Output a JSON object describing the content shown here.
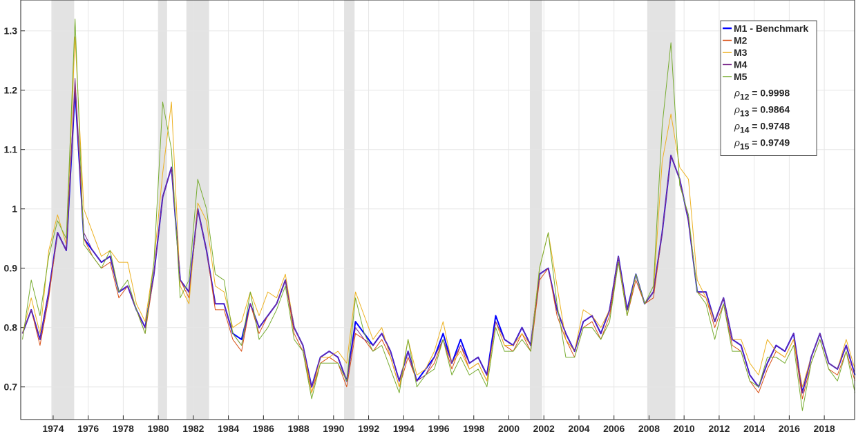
{
  "chart_data": {
    "type": "line",
    "x": [
      1972.25,
      1972.75,
      1973.25,
      1973.75,
      1974.25,
      1974.75,
      1975.25,
      1975.75,
      1976.25,
      1976.75,
      1977.25,
      1977.75,
      1978.25,
      1978.75,
      1979.25,
      1979.75,
      1980.25,
      1980.75,
      1981.25,
      1981.75,
      1982.25,
      1982.75,
      1983.25,
      1983.75,
      1984.25,
      1984.75,
      1985.25,
      1985.75,
      1986.25,
      1986.75,
      1987.25,
      1987.75,
      1988.25,
      1988.75,
      1989.25,
      1989.75,
      1990.25,
      1990.75,
      1991.25,
      1991.75,
      1992.25,
      1992.75,
      1993.25,
      1993.75,
      1994.25,
      1994.75,
      1995.25,
      1995.75,
      1996.25,
      1996.75,
      1997.25,
      1997.75,
      1998.25,
      1998.75,
      1999.25,
      1999.75,
      2000.25,
      2000.75,
      2001.25,
      2001.75,
      2002.25,
      2002.75,
      2003.25,
      2003.75,
      2004.25,
      2004.75,
      2005.25,
      2005.75,
      2006.25,
      2006.75,
      2007.25,
      2007.75,
      2008.25,
      2008.75,
      2009.25,
      2009.75,
      2010.25,
      2010.75,
      2011.25,
      2011.75,
      2012.25,
      2012.75,
      2013.25,
      2013.75,
      2014.25,
      2014.75,
      2015.25,
      2015.75,
      2016.25,
      2016.75,
      2017.25,
      2017.75,
      2018.25,
      2018.75,
      2019.25,
      2019.75
    ],
    "series": [
      {
        "name": "M1 - Benchmark",
        "color": "#0000ff",
        "width": 2,
        "values": [
          0.79,
          0.83,
          0.78,
          0.86,
          0.96,
          0.93,
          1.2,
          0.95,
          0.93,
          0.91,
          0.92,
          0.86,
          0.87,
          0.83,
          0.8,
          0.89,
          1.02,
          1.07,
          0.88,
          0.86,
          1.0,
          0.93,
          0.84,
          0.84,
          0.79,
          0.78,
          0.84,
          0.8,
          0.82,
          0.84,
          0.88,
          0.8,
          0.77,
          0.7,
          0.75,
          0.76,
          0.75,
          0.71,
          0.81,
          0.79,
          0.77,
          0.79,
          0.76,
          0.71,
          0.76,
          0.71,
          0.73,
          0.75,
          0.79,
          0.74,
          0.78,
          0.74,
          0.75,
          0.72,
          0.82,
          0.78,
          0.77,
          0.8,
          0.77,
          0.89,
          0.9,
          0.83,
          0.79,
          0.76,
          0.81,
          0.82,
          0.79,
          0.83,
          0.92,
          0.83,
          0.89,
          0.84,
          0.86,
          0.96,
          1.09,
          1.05,
          0.98,
          0.86,
          0.86,
          0.81,
          0.85,
          0.78,
          0.77,
          0.72,
          0.7,
          0.74,
          0.77,
          0.76,
          0.79,
          0.69,
          0.75,
          0.79,
          0.74,
          0.73,
          0.77,
          0.72
        ]
      },
      {
        "name": "M2",
        "color": "#d95319",
        "width": 1,
        "values": [
          0.79,
          0.83,
          0.77,
          0.85,
          0.96,
          0.93,
          1.21,
          0.95,
          0.92,
          0.9,
          0.91,
          0.85,
          0.87,
          0.83,
          0.79,
          0.89,
          1.02,
          1.07,
          0.88,
          0.85,
          1.0,
          0.93,
          0.83,
          0.83,
          0.78,
          0.76,
          0.84,
          0.79,
          0.82,
          0.84,
          0.88,
          0.79,
          0.76,
          0.69,
          0.74,
          0.75,
          0.74,
          0.7,
          0.79,
          0.78,
          0.76,
          0.78,
          0.75,
          0.7,
          0.75,
          0.71,
          0.72,
          0.74,
          0.78,
          0.73,
          0.77,
          0.73,
          0.74,
          0.71,
          0.81,
          0.77,
          0.76,
          0.79,
          0.76,
          0.88,
          0.9,
          0.82,
          0.78,
          0.75,
          0.8,
          0.81,
          0.78,
          0.82,
          0.91,
          0.82,
          0.88,
          0.84,
          0.85,
          0.96,
          1.09,
          1.05,
          0.98,
          0.86,
          0.85,
          0.8,
          0.84,
          0.77,
          0.76,
          0.71,
          0.69,
          0.73,
          0.76,
          0.75,
          0.78,
          0.68,
          0.74,
          0.78,
          0.73,
          0.72,
          0.76,
          0.71
        ]
      },
      {
        "name": "M3",
        "color": "#edb120",
        "width": 1,
        "values": [
          0.79,
          0.85,
          0.79,
          0.93,
          0.99,
          0.94,
          1.29,
          1.0,
          0.96,
          0.92,
          0.93,
          0.91,
          0.91,
          0.84,
          0.81,
          0.91,
          1.06,
          1.18,
          0.87,
          0.84,
          1.01,
          0.98,
          0.87,
          0.86,
          0.8,
          0.81,
          0.86,
          0.82,
          0.86,
          0.85,
          0.89,
          0.8,
          0.77,
          0.69,
          0.75,
          0.75,
          0.76,
          0.74,
          0.86,
          0.82,
          0.78,
          0.8,
          0.75,
          0.7,
          0.78,
          0.72,
          0.73,
          0.76,
          0.81,
          0.74,
          0.76,
          0.73,
          0.74,
          0.71,
          0.81,
          0.77,
          0.77,
          0.79,
          0.77,
          0.9,
          0.96,
          0.87,
          0.78,
          0.76,
          0.83,
          0.82,
          0.8,
          0.83,
          0.92,
          0.82,
          0.89,
          0.84,
          0.86,
          1.08,
          1.16,
          1.07,
          1.05,
          0.88,
          0.85,
          0.81,
          0.85,
          0.78,
          0.78,
          0.74,
          0.72,
          0.78,
          0.76,
          0.75,
          0.78,
          0.7,
          0.75,
          0.79,
          0.74,
          0.73,
          0.78,
          0.73
        ]
      },
      {
        "name": "M4",
        "color": "#7e2f8e",
        "width": 1,
        "values": [
          0.79,
          0.83,
          0.78,
          0.86,
          0.96,
          0.93,
          1.22,
          0.96,
          0.93,
          0.91,
          0.92,
          0.86,
          0.87,
          0.83,
          0.8,
          0.89,
          1.02,
          1.07,
          0.88,
          0.86,
          1.0,
          0.93,
          0.84,
          0.84,
          0.79,
          0.77,
          0.84,
          0.8,
          0.82,
          0.84,
          0.88,
          0.8,
          0.77,
          0.7,
          0.75,
          0.76,
          0.75,
          0.71,
          0.8,
          0.78,
          0.77,
          0.79,
          0.76,
          0.71,
          0.76,
          0.71,
          0.72,
          0.75,
          0.78,
          0.74,
          0.77,
          0.74,
          0.75,
          0.72,
          0.81,
          0.78,
          0.77,
          0.8,
          0.77,
          0.89,
          0.9,
          0.83,
          0.79,
          0.76,
          0.81,
          0.82,
          0.79,
          0.83,
          0.92,
          0.83,
          0.89,
          0.84,
          0.86,
          0.96,
          1.09,
          1.05,
          0.98,
          0.86,
          0.86,
          0.81,
          0.85,
          0.78,
          0.77,
          0.72,
          0.7,
          0.74,
          0.77,
          0.76,
          0.79,
          0.69,
          0.75,
          0.79,
          0.74,
          0.73,
          0.77,
          0.72
        ]
      },
      {
        "name": "M5",
        "color": "#77ac30",
        "width": 1,
        "values": [
          0.78,
          0.88,
          0.82,
          0.92,
          0.98,
          0.95,
          1.32,
          0.94,
          0.92,
          0.9,
          0.93,
          0.86,
          0.88,
          0.83,
          0.79,
          0.91,
          1.18,
          1.1,
          0.85,
          0.88,
          1.05,
          1.0,
          0.89,
          0.88,
          0.79,
          0.77,
          0.86,
          0.78,
          0.8,
          0.83,
          0.87,
          0.78,
          0.76,
          0.68,
          0.74,
          0.74,
          0.74,
          0.71,
          0.85,
          0.79,
          0.76,
          0.77,
          0.73,
          0.69,
          0.78,
          0.7,
          0.72,
          0.73,
          0.78,
          0.72,
          0.75,
          0.72,
          0.73,
          0.7,
          0.8,
          0.76,
          0.76,
          0.78,
          0.76,
          0.9,
          0.96,
          0.84,
          0.75,
          0.75,
          0.8,
          0.8,
          0.78,
          0.81,
          0.91,
          0.82,
          0.89,
          0.84,
          0.87,
          1.14,
          1.28,
          1.04,
          0.99,
          0.86,
          0.84,
          0.78,
          0.84,
          0.76,
          0.76,
          0.71,
          0.7,
          0.75,
          0.75,
          0.74,
          0.77,
          0.66,
          0.74,
          0.78,
          0.73,
          0.71,
          0.76,
          0.69
        ]
      }
    ],
    "shaded_periods": [
      [
        1973.9,
        1975.2
      ],
      [
        1980.0,
        1980.5
      ],
      [
        1981.6,
        1982.9
      ],
      [
        1990.6,
        1991.2
      ],
      [
        2001.2,
        2001.9
      ],
      [
        2007.9,
        2009.5
      ]
    ],
    "annotations": [
      {
        "symbol": "ρ",
        "subscript": "12",
        "text": " = 0.9998"
      },
      {
        "symbol": "ρ",
        "subscript": "13",
        "text": " = 0.9864"
      },
      {
        "symbol": "ρ",
        "subscript": "14",
        "text": " = 0.9748"
      },
      {
        "symbol": "ρ",
        "subscript": "15",
        "text": " = 0.9749"
      }
    ],
    "xlim": [
      1972.15,
      2019.73
    ],
    "ylim": [
      0.645,
      1.352
    ],
    "xticks": [
      1974,
      1976,
      1978,
      1980,
      1982,
      1984,
      1986,
      1988,
      1990,
      1992,
      1994,
      1996,
      1998,
      2000,
      2002,
      2004,
      2006,
      2008,
      2010,
      2012,
      2014,
      2016,
      2018
    ],
    "yticks": [
      0.7,
      0.8,
      0.9,
      1,
      1.1,
      1.2,
      1.3
    ],
    "grid": true,
    "legend": "top-right"
  }
}
